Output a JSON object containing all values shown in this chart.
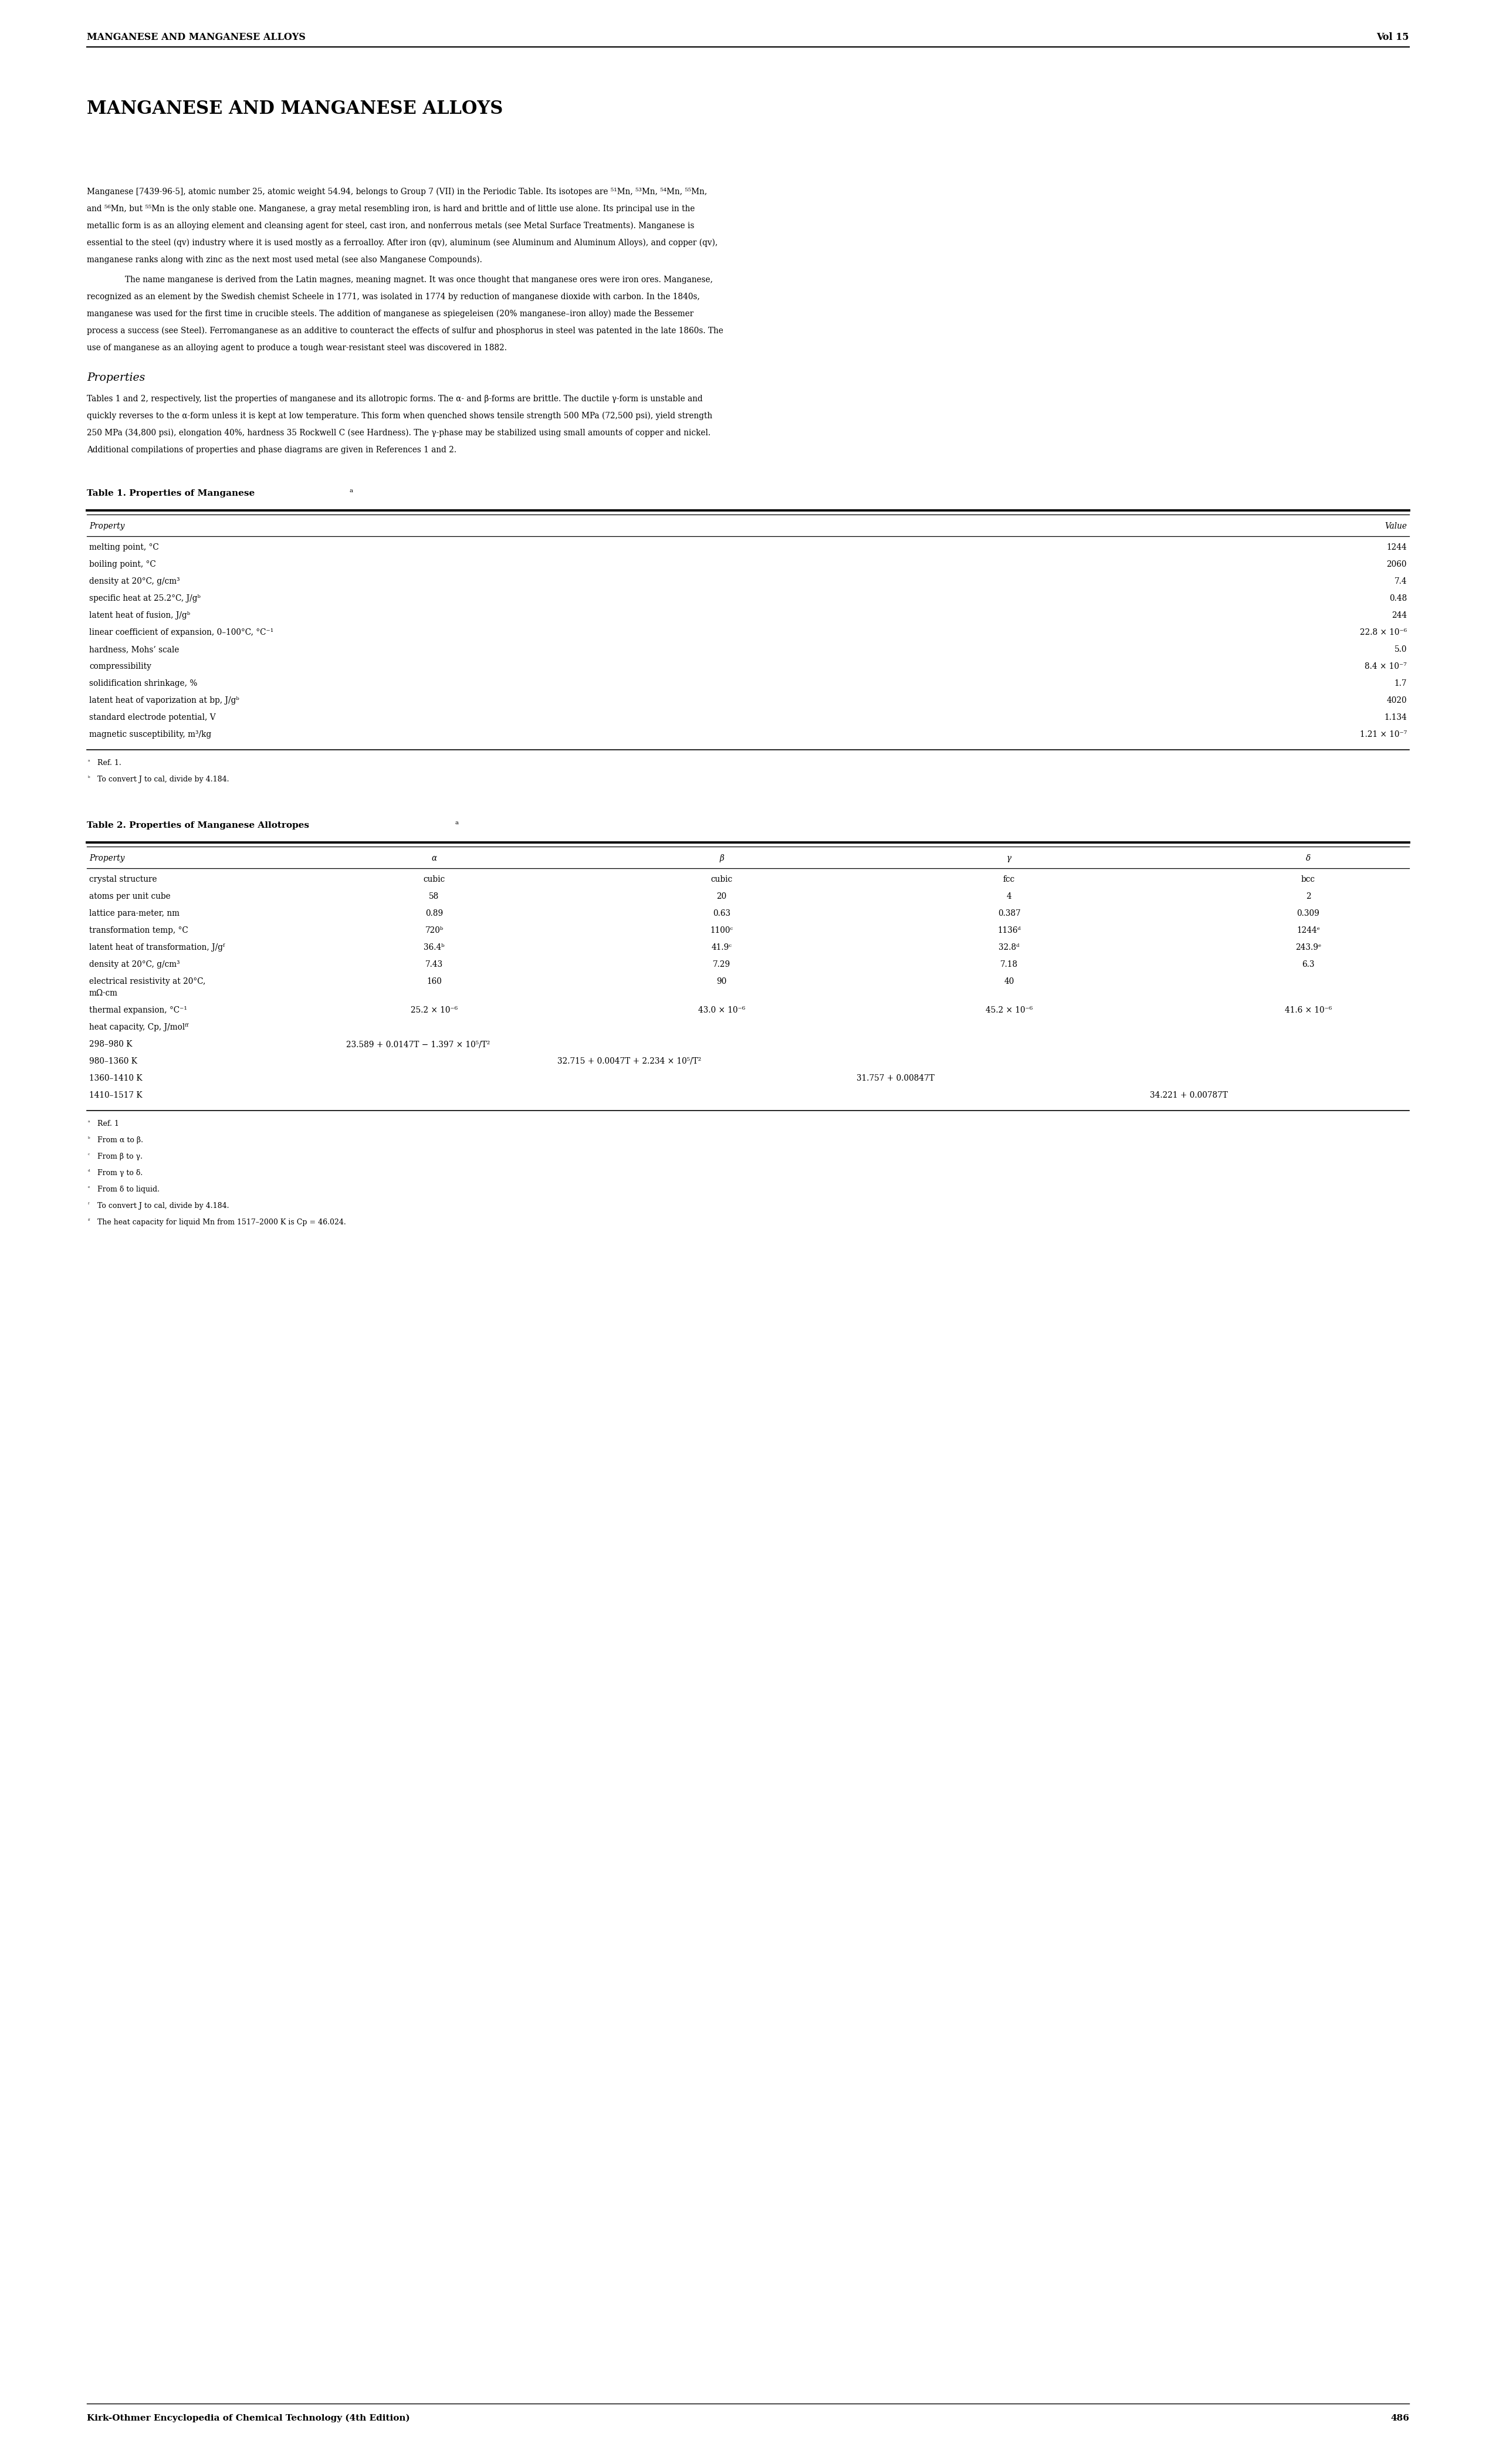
{
  "header_left": "MANGANESE AND MANGANESE ALLOYS",
  "header_right": "Vol 15",
  "page_number": "486",
  "footer_left": "Kirk-Othmer Encyclopedia of Chemical Technology (4th Edition)",
  "main_title": "MANGANESE AND MANGANESE ALLOYS",
  "bg_color": "#ffffff",
  "text_color": "#000000",
  "line_color": "#000000",
  "table1_rows": [
    [
      "melting point, °C",
      "1244"
    ],
    [
      "boiling point, °C",
      "2060"
    ],
    [
      "density at 20°C, g/cm³",
      "7.4"
    ],
    [
      "specific heat at 25.2°C, J/gᵇ",
      "0.48"
    ],
    [
      "latent heat of fusion, J/gᵇ",
      "244"
    ],
    [
      "linear coefficient of expansion, 0–100°C, °C⁻¹",
      "22.8 × 10⁻⁶"
    ],
    [
      "hardness, Mohs’ scale",
      "5.0"
    ],
    [
      "compressibility",
      "8.4 × 10⁻⁷"
    ],
    [
      "solidification shrinkage, %",
      "1.7"
    ],
    [
      "latent heat of vaporization at bp, J/gᵇ",
      "4020"
    ],
    [
      "standard electrode potential, V",
      "1.134"
    ],
    [
      "magnetic susceptibility, m³/kg",
      "1.21 × 10⁻⁷"
    ]
  ],
  "table1_footnotes": [
    [
      "ᵃ",
      "Ref. 1."
    ],
    [
      "ᵇ",
      "To convert J to cal, divide by 4.184."
    ]
  ],
  "table2_footnotes": [
    [
      "ᵃ",
      "Ref. 1"
    ],
    [
      "ᵇ",
      "From α to β."
    ],
    [
      "ᶜ",
      "From β to γ."
    ],
    [
      "ᵈ",
      "From γ to δ."
    ],
    [
      "ᵉ",
      "From δ to liquid."
    ],
    [
      "ᶠ",
      "To convert J to cal, divide by 4.184."
    ],
    [
      "ᶠᶠ",
      "The heat capacity for liquid Mn from 1517–2000 K is Cp = 46.024."
    ]
  ]
}
